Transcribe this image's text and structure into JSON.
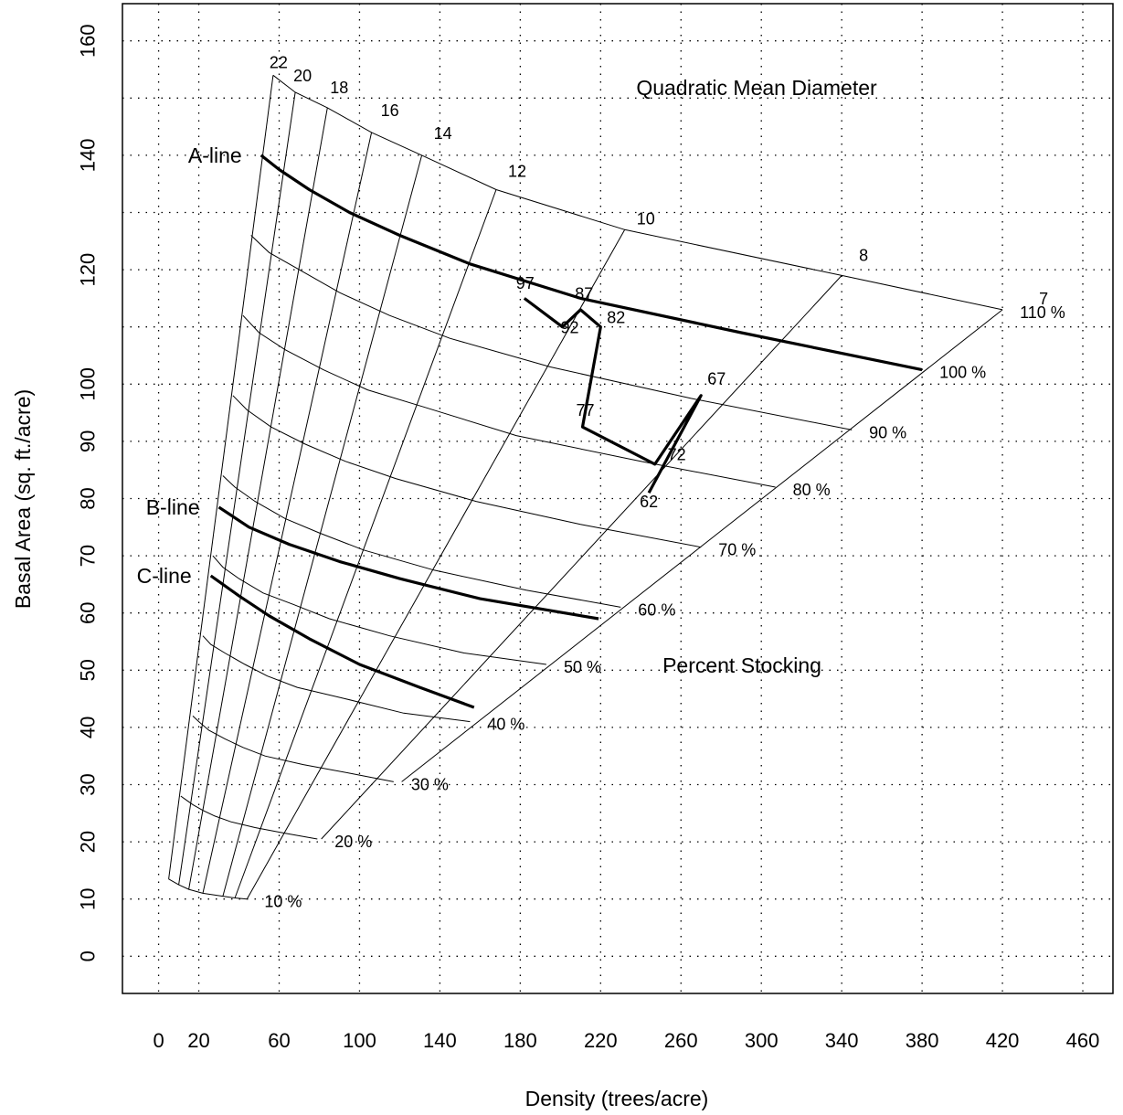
{
  "chart_data": {
    "type": "line",
    "title": "",
    "xlabel": "Density (trees/acre)",
    "ylabel": "Basal Area (sq. ft./acre)",
    "xlim": [
      -18,
      475
    ],
    "ylim": [
      -6.5,
      166.5
    ],
    "xticks": [
      0,
      20,
      60,
      100,
      140,
      180,
      220,
      260,
      300,
      340,
      380,
      420,
      460
    ],
    "yticks": [
      0,
      10,
      20,
      30,
      40,
      50,
      60,
      70,
      80,
      90,
      100,
      110,
      120,
      130,
      140,
      150,
      160
    ],
    "ytick_labels": [
      0,
      10,
      20,
      30,
      40,
      50,
      60,
      70,
      80,
      90,
      100,
      120,
      140,
      160
    ],
    "grid": true,
    "diameter_lines": [
      {
        "label": "22",
        "points": [
          [
            5,
            13.5
          ],
          [
            57,
            154
          ]
        ]
      },
      {
        "label": "20",
        "points": [
          [
            10,
            12.5
          ],
          [
            68,
            151
          ]
        ]
      },
      {
        "label": "18",
        "points": [
          [
            15,
            11.7
          ],
          [
            84,
            148.3
          ]
        ]
      },
      {
        "label": "16",
        "points": [
          [
            22,
            11
          ],
          [
            106,
            144
          ]
        ]
      },
      {
        "label": "14",
        "points": [
          [
            32,
            10.5
          ],
          [
            131,
            140
          ]
        ]
      },
      {
        "label": "12",
        "points": [
          [
            38,
            10.2
          ],
          [
            168,
            134
          ]
        ]
      },
      {
        "label": "10",
        "points": [
          [
            44,
            10
          ],
          [
            232,
            127
          ]
        ]
      },
      {
        "label": "8",
        "points": [
          [
            81,
            20.5
          ],
          [
            340,
            119
          ]
        ]
      },
      {
        "label": "7",
        "points": [
          [
            121,
            30.5
          ],
          [
            420,
            113
          ]
        ]
      }
    ],
    "stocking_curves": [
      {
        "label": "110 %",
        "points": [
          [
            57,
            154
          ],
          [
            68,
            151
          ],
          [
            84,
            148.3
          ],
          [
            106,
            144
          ],
          [
            131,
            140
          ],
          [
            168,
            134
          ],
          [
            232,
            127
          ],
          [
            340,
            119
          ],
          [
            420,
            113
          ]
        ]
      },
      {
        "label": "100 %",
        "points": [
          [
            51,
            140
          ],
          [
            60,
            137.5
          ],
          [
            75,
            134
          ],
          [
            95,
            130
          ],
          [
            120,
            126
          ],
          [
            155,
            121
          ],
          [
            210,
            115
          ],
          [
            290,
            109
          ],
          [
            380,
            102.5
          ]
        ]
      },
      {
        "label": "90 %",
        "points": [
          [
            46,
            126
          ],
          [
            55,
            123
          ],
          [
            70,
            120
          ],
          [
            90,
            116
          ],
          [
            115,
            112
          ],
          [
            145,
            108
          ],
          [
            195,
            103
          ],
          [
            265,
            97.5
          ],
          [
            345,
            92
          ]
        ]
      },
      {
        "label": "80 %",
        "points": [
          [
            42,
            112
          ],
          [
            50,
            109
          ],
          [
            63,
            106
          ],
          [
            82,
            102.5
          ],
          [
            104,
            99
          ],
          [
            132,
            96
          ],
          [
            178,
            91
          ],
          [
            240,
            86.5
          ],
          [
            307,
            82
          ]
        ]
      },
      {
        "label": "70 %",
        "points": [
          [
            37,
            98
          ],
          [
            44,
            95.5
          ],
          [
            56,
            92.5
          ],
          [
            73,
            89.5
          ],
          [
            93,
            86.5
          ],
          [
            118,
            83.5
          ],
          [
            158,
            79.5
          ],
          [
            210,
            75.5
          ],
          [
            270,
            71.5
          ]
        ]
      },
      {
        "label": "60 %",
        "points": [
          [
            32,
            84
          ],
          [
            38,
            82
          ],
          [
            48,
            79.5
          ],
          [
            63,
            76.5
          ],
          [
            80,
            74
          ],
          [
            102,
            71
          ],
          [
            137,
            67.5
          ],
          [
            183,
            64
          ],
          [
            230,
            61
          ]
        ]
      },
      {
        "label": "50 %",
        "points": [
          [
            27,
            70
          ],
          [
            32,
            68
          ],
          [
            40,
            66
          ],
          [
            52,
            63.5
          ],
          [
            67,
            61.5
          ],
          [
            85,
            59
          ],
          [
            115,
            56
          ],
          [
            152,
            53
          ],
          [
            193,
            51
          ]
        ]
      },
      {
        "label": "40 %",
        "points": [
          [
            22,
            56
          ],
          [
            26,
            54.5
          ],
          [
            33,
            53
          ],
          [
            43,
            51
          ],
          [
            54,
            49
          ],
          [
            69,
            47
          ],
          [
            93,
            45
          ],
          [
            122,
            42.5
          ],
          [
            155,
            41
          ]
        ]
      },
      {
        "label": "30 %",
        "points": [
          [
            17,
            42
          ],
          [
            20,
            41
          ],
          [
            25,
            39.5
          ],
          [
            33,
            38
          ],
          [
            42,
            36.5
          ],
          [
            53,
            35
          ],
          [
            72,
            33.5
          ],
          [
            95,
            32
          ],
          [
            117,
            30.5
          ]
        ]
      },
      {
        "label": "20 %",
        "points": [
          [
            11,
            28
          ],
          [
            13,
            27.5
          ],
          [
            17,
            26.5
          ],
          [
            22,
            25.5
          ],
          [
            28,
            24.5
          ],
          [
            36,
            23.5
          ],
          [
            48,
            22.5
          ],
          [
            63,
            21.5
          ],
          [
            79,
            20.5
          ]
        ]
      },
      {
        "label": "10 %",
        "points": [
          [
            5,
            13.5
          ],
          [
            10,
            12.5
          ],
          [
            15,
            11.7
          ],
          [
            22,
            11
          ],
          [
            32,
            10.5
          ],
          [
            38,
            10.2
          ],
          [
            44,
            10
          ]
        ]
      }
    ],
    "management_lines": [
      {
        "label": "A-line",
        "points": [
          [
            51,
            140
          ],
          [
            60,
            137.5
          ],
          [
            75,
            134
          ],
          [
            95,
            130
          ],
          [
            120,
            126
          ],
          [
            155,
            121
          ],
          [
            210,
            115
          ],
          [
            290,
            109
          ],
          [
            380,
            102.5
          ]
        ]
      },
      {
        "label": "B-line",
        "points": [
          [
            30,
            78.5
          ],
          [
            45,
            75
          ],
          [
            65,
            72
          ],
          [
            90,
            69
          ],
          [
            120,
            66
          ],
          [
            160,
            62.5
          ],
          [
            219,
            59
          ]
        ]
      },
      {
        "label": "C-line",
        "points": [
          [
            26,
            66.5
          ],
          [
            40,
            63
          ],
          [
            55,
            59.5
          ],
          [
            75,
            55.5
          ],
          [
            100,
            51
          ],
          [
            130,
            47
          ],
          [
            157,
            43.5
          ]
        ]
      }
    ],
    "stand_trajectory": [
      {
        "year": "62",
        "x": 244,
        "y": 81
      },
      {
        "year": "67",
        "x": 270,
        "y": 98
      },
      {
        "year": "72",
        "x": 247,
        "y": 86
      },
      {
        "year": "77",
        "x": 211,
        "y": 92.5
      },
      {
        "year": "82",
        "x": 220,
        "y": 110
      },
      {
        "year": "87",
        "x": 210,
        "y": 113
      },
      {
        "year": "92",
        "x": 201,
        "y": 110
      },
      {
        "year": "97",
        "x": 182,
        "y": 115
      }
    ],
    "annotations": [
      {
        "text": "Quadratic Mean Diameter"
      },
      {
        "text": "Percent Stocking"
      }
    ]
  }
}
